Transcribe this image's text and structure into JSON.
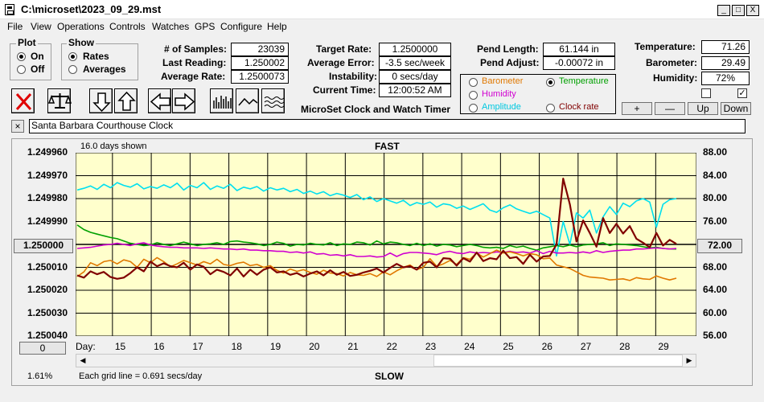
{
  "window": {
    "title": "C:\\microset\\2023_09_29.mst",
    "min_label": "_",
    "max_label": "□",
    "close_label": "X"
  },
  "menu": [
    "File",
    "View",
    "Operations",
    "Controls",
    "Watches",
    "GPS",
    "Configure",
    "Help"
  ],
  "plot_group": {
    "title": "Plot",
    "on": "On",
    "off": "Off",
    "selected": "On"
  },
  "show_group": {
    "title": "Show",
    "rates": "Rates",
    "averages": "Averages",
    "selected": "Rates"
  },
  "stats": {
    "samples_label": "# of Samples:",
    "samples": "23039",
    "last_label": "Last Reading:",
    "last": "1.250002",
    "avg_label": "Average Rate:",
    "avg": "1.2500073",
    "target_label": "Target Rate:",
    "target": "1.2500000",
    "avgerr_label": "Average Error:",
    "avgerr": "-3.5 sec/week",
    "instab_label": "Instability:",
    "instab": "0 secs/day",
    "time_label": "Current Time:",
    "time": "12:00:52 AM",
    "pendlen_label": "Pend Length:",
    "pendlen": "61.144 in",
    "pendadj_label": "Pend Adjust:",
    "pendadj": "-0.00072 in",
    "temp_label": "Temperature:",
    "temp": "71.26",
    "baro_label": "Barometer:",
    "baro": "29.49",
    "hum_label": "Humidity:",
    "hum": "72%"
  },
  "app_name": "MicroSet Clock and Watch Timer",
  "sensors": {
    "barometer": "Barometer",
    "temperature": "Temperature",
    "humidity": "Humidity",
    "amplitude": "Amplitude",
    "clock_rate": "Clock rate",
    "selected": "temperature",
    "colors": {
      "barometer": "#e07800",
      "temperature": "#00a000",
      "humidity": "#d000d0",
      "amplitude": "#00c8e0",
      "clock_rate": "#800000"
    }
  },
  "scale_buttons": {
    "plus": "+",
    "minus": "—",
    "up": "Up",
    "down": "Down"
  },
  "checkboxes": {
    "left": "",
    "right": "✓"
  },
  "clock_name": {
    "close_label": "×",
    "value": "Santa Barbara Courthouse Clock"
  },
  "chart_header": {
    "days_shown": "16.0 days shown",
    "fast": "FAST",
    "slow": "SLOW"
  },
  "chart_footer": {
    "day_label": "Day:",
    "grid_note": "Each grid line = 0.691 secs/day",
    "percent": "1.61%",
    "left_btn": "0"
  },
  "left_axis_center_btn": "1.250000",
  "right_axis_center_btn": "72.00",
  "chart_data": {
    "type": "line",
    "title": "",
    "x_axis_label": "Day:",
    "x_ticks": [
      "15",
      "16",
      "17",
      "18",
      "19",
      "20",
      "21",
      "22",
      "23",
      "24",
      "25",
      "26",
      "27",
      "28",
      "29"
    ],
    "x_range": [
      14.05,
      30.05
    ],
    "left_ticks": [
      "1.249960",
      "1.249970",
      "1.249980",
      "1.249990",
      "",
      "1.250010",
      "1.250020",
      "1.250030",
      "1.250040"
    ],
    "right_ticks": [
      "88.00",
      "84.00",
      "80.00",
      "76.00",
      "",
      "68.00",
      "64.00",
      "60.00",
      "56.00"
    ],
    "y_range_rate": [
      1.24996,
      1.25004
    ],
    "y_range_temp": [
      56,
      88
    ],
    "grid": true,
    "legend": "none",
    "series": [
      {
        "key": "amplitude",
        "color": "#00dfef",
        "values": [
          81.5,
          81.8,
          82.2,
          81.6,
          82.5,
          81.9,
          82.8,
          82.3,
          82.0,
          82.6,
          81.7,
          82.1,
          81.8,
          82.4,
          81.9,
          82.7,
          81.5,
          82.3,
          81.9,
          82.8,
          81.6,
          82.2,
          81.8,
          82.5,
          81.4,
          82.0,
          81.7,
          82.1,
          81.3,
          81.9,
          81.5,
          81.8,
          81.2,
          81.6,
          80.9,
          81.3,
          80.8,
          81.2,
          80.5,
          80.9,
          80.6,
          80.2,
          80.7,
          79.8,
          80.3,
          79.5,
          80.0,
          79.6,
          79.2,
          79.7,
          78.8,
          79.3,
          79.0,
          79.4,
          78.5,
          79.1,
          78.9,
          78.3,
          78.7,
          78.1,
          78.6,
          79.1,
          78.0,
          77.6,
          78.4,
          78.9,
          78.2,
          77.8,
          77.4,
          77.8,
          77.2,
          76.6,
          70.0,
          76.0,
          72.0,
          77.5,
          76.6,
          78.0,
          74.0,
          76.8,
          78.6,
          77.2,
          79.2,
          78.6,
          79.6,
          80.0,
          79.4,
          75.0,
          79.0,
          79.8,
          80.0
        ]
      },
      {
        "key": "temperature",
        "color": "#00a000",
        "values": [
          75.4,
          74.6,
          74.1,
          73.8,
          73.5,
          73.2,
          73.0,
          72.6,
          72.2,
          72.0,
          71.8,
          71.9,
          72.3,
          72.0,
          71.8,
          72.1,
          72.4,
          72.1,
          71.8,
          72.0,
          72.1,
          72.3,
          72.0,
          72.5,
          72.6,
          72.4,
          72.3,
          72.1,
          71.8,
          72.0,
          72.4,
          72.2,
          71.7,
          72.0,
          71.9,
          72.2,
          72.0,
          71.9,
          72.3,
          71.8,
          72.1,
          72.0,
          72.4,
          72.3,
          71.9,
          72.6,
          72.1,
          72.4,
          72.3,
          72.0,
          71.8,
          72.2,
          71.8,
          72.1,
          71.7,
          72.0,
          71.9,
          71.6,
          71.8,
          72.0,
          71.8,
          71.5,
          71.4,
          71.5,
          71.3,
          71.8,
          71.5,
          71.7,
          71.3,
          71.0,
          71.4,
          71.6,
          71.8,
          71.6,
          71.9,
          71.6,
          71.9,
          72.0,
          72.1,
          72.3,
          71.8,
          72.1,
          72.0,
          71.9,
          71.8,
          71.6,
          71.4,
          71.5,
          71.3,
          71.2,
          71.2
        ]
      },
      {
        "key": "humidity",
        "color": "#d000d0",
        "values": [
          71.3,
          71.4,
          71.5,
          71.7,
          71.9,
          72.0,
          72.2,
          72.0,
          71.8,
          72.1,
          72.3,
          71.9,
          71.7,
          71.6,
          71.5,
          71.5,
          71.4,
          71.4,
          71.4,
          71.3,
          71.4,
          71.3,
          71.2,
          71.2,
          71.1,
          71.2,
          71.0,
          71.0,
          70.9,
          70.9,
          70.8,
          70.8,
          70.6,
          70.7,
          70.5,
          70.7,
          70.3,
          70.4,
          70.1,
          70.2,
          70.0,
          70.2,
          69.9,
          69.9,
          70.0,
          69.8,
          69.9,
          70.5,
          69.9,
          70.4,
          70.6,
          70.6,
          70.5,
          70.4,
          70.2,
          70.6,
          70.8,
          70.5,
          70.4,
          70.7,
          70.5,
          70.6,
          70.5,
          70.7,
          70.6,
          70.8,
          70.6,
          70.7,
          70.5,
          70.9,
          70.4,
          70.8,
          70.5,
          70.5,
          70.6,
          70.5,
          70.7,
          70.5,
          70.9,
          70.6,
          70.8,
          70.9,
          71.0,
          71.0,
          71.2,
          71.2,
          71.3,
          71.4,
          71.3,
          71.2,
          71.3
        ]
      },
      {
        "key": "barometer",
        "color": "#e07800",
        "values": [
          66.4,
          67.2,
          68.8,
          68.3,
          69.0,
          69.2,
          68.6,
          69.3,
          69.0,
          68.0,
          69.4,
          68.8,
          69.7,
          69.0,
          68.1,
          68.6,
          69.2,
          68.8,
          68.4,
          69.0,
          68.6,
          69.4,
          68.5,
          68.3,
          68.7,
          68.9,
          68.3,
          68.5,
          68.0,
          68.3,
          67.5,
          67.0,
          67.7,
          67.3,
          67.6,
          67.1,
          66.8,
          67.5,
          67.0,
          66.9,
          66.5,
          67.1,
          66.7,
          66.6,
          66.9,
          66.4,
          67.2,
          66.7,
          67.4,
          68.0,
          68.4,
          67.6,
          68.0,
          69.5,
          68.2,
          68.6,
          69.2,
          68.5,
          69.7,
          69.4,
          70.5,
          69.8,
          70.4,
          71.0,
          70.5,
          70.7,
          70.4,
          70.0,
          70.4,
          70.2,
          69.5,
          69.6,
          68.4,
          68.1,
          67.8,
          67.2,
          66.6,
          66.3,
          66.2,
          66.1,
          65.8,
          65.9,
          66.0,
          65.7,
          66.2,
          66.0,
          65.9,
          66.5,
          66.1,
          65.8,
          66.1
        ]
      },
      {
        "key": "clock_rate",
        "color": "#800000",
        "values": [
          66.6,
          66.2,
          67.3,
          66.8,
          67.2,
          66.3,
          66.0,
          66.2,
          67.0,
          68.0,
          67.3,
          69.0,
          68.2,
          68.7,
          68.2,
          68.0,
          68.8,
          67.6,
          68.5,
          68.1,
          66.8,
          67.6,
          67.2,
          66.6,
          67.8,
          66.4,
          67.6,
          66.7,
          67.6,
          68.0,
          67.1,
          67.3,
          66.7,
          67.0,
          66.4,
          66.9,
          67.3,
          66.6,
          67.5,
          66.7,
          67.2,
          66.5,
          66.7,
          67.1,
          67.4,
          67.8,
          67.1,
          67.9,
          68.6,
          68.0,
          68.2,
          67.6,
          68.8,
          69.0,
          68.0,
          69.6,
          69.5,
          68.3,
          69.6,
          69.0,
          70.6,
          69.1,
          69.6,
          69.4,
          70.9,
          69.6,
          69.8,
          68.6,
          70.2,
          69.0,
          69.9,
          70.0,
          72.0,
          83.5,
          79.0,
          72.5,
          76.2,
          74.0,
          71.6,
          76.6,
          74.0,
          75.6,
          73.9,
          75.2,
          73.0,
          72.3,
          71.5,
          74.0,
          71.8,
          72.8,
          72.1
        ]
      }
    ]
  }
}
